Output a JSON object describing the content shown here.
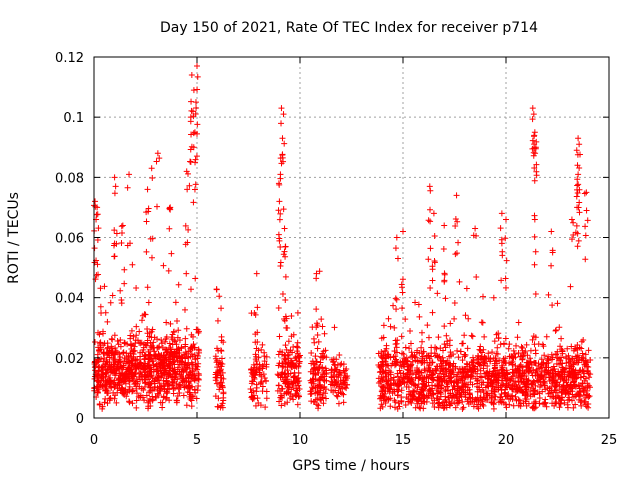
{
  "chart_data": {
    "type": "scatter",
    "title": "Day 150 of 2021, Rate Of TEC Index for receiver p714",
    "xlabel": "GPS time / hours",
    "ylabel": "ROTI / TECUs",
    "xlim": [
      0,
      25
    ],
    "ylim": [
      0,
      0.12
    ],
    "xticks": [
      "0",
      "5",
      "10",
      "15",
      "20",
      "25"
    ],
    "xtick_values": [
      0,
      5,
      10,
      15,
      20,
      25
    ],
    "yticks": [
      "0",
      "0.02",
      "0.04",
      "0.06",
      "0.08",
      "0.1",
      "0.12"
    ],
    "ytick_values": [
      0,
      0.02,
      0.04,
      0.06,
      0.07999,
      0.1,
      0.12
    ],
    "grid": true,
    "marker": "+",
    "marker_color": "#ff0000",
    "segments": [
      {
        "x_start": 0.0,
        "x_end": 5.1,
        "base": 0.016,
        "spread": 0.02,
        "count": 900
      },
      {
        "x_start": 5.9,
        "x_end": 6.3,
        "base": 0.014,
        "spread": 0.02,
        "count": 60
      },
      {
        "x_start": 7.6,
        "x_end": 8.4,
        "base": 0.014,
        "spread": 0.02,
        "count": 80
      },
      {
        "x_start": 8.9,
        "x_end": 10.0,
        "base": 0.015,
        "spread": 0.02,
        "count": 160
      },
      {
        "x_start": 10.5,
        "x_end": 11.3,
        "base": 0.013,
        "spread": 0.02,
        "count": 110
      },
      {
        "x_start": 11.5,
        "x_end": 12.3,
        "base": 0.013,
        "spread": 0.012,
        "count": 80
      },
      {
        "x_start": 13.8,
        "x_end": 24.1,
        "base": 0.013,
        "spread": 0.02,
        "count": 1500
      }
    ],
    "peaks": [
      {
        "x": 0.05,
        "y": 0.072
      },
      {
        "x": 0.1,
        "y": 0.066
      },
      {
        "x": 0.15,
        "y": 0.07
      },
      {
        "x": 1.0,
        "y": 0.08
      },
      {
        "x": 1.05,
        "y": 0.077
      },
      {
        "x": 1.7,
        "y": 0.081
      },
      {
        "x": 1.4,
        "y": 0.064
      },
      {
        "x": 2.8,
        "y": 0.083
      },
      {
        "x": 3.1,
        "y": 0.088
      },
      {
        "x": 2.6,
        "y": 0.076
      },
      {
        "x": 3.7,
        "y": 0.07
      },
      {
        "x": 4.5,
        "y": 0.082
      },
      {
        "x": 4.75,
        "y": 0.114
      },
      {
        "x": 4.85,
        "y": 0.109
      },
      {
        "x": 4.95,
        "y": 0.105
      },
      {
        "x": 5.0,
        "y": 0.117
      },
      {
        "x": 4.7,
        "y": 0.1
      },
      {
        "x": 4.9,
        "y": 0.095
      },
      {
        "x": 9.1,
        "y": 0.103
      },
      {
        "x": 9.2,
        "y": 0.101
      },
      {
        "x": 9.15,
        "y": 0.093
      },
      {
        "x": 9.05,
        "y": 0.081
      },
      {
        "x": 9.25,
        "y": 0.063
      },
      {
        "x": 9.3,
        "y": 0.057
      },
      {
        "x": 9.0,
        "y": 0.072
      },
      {
        "x": 10.8,
        "y": 0.048
      },
      {
        "x": 7.9,
        "y": 0.048
      },
      {
        "x": 16.3,
        "y": 0.077
      },
      {
        "x": 17.6,
        "y": 0.074
      },
      {
        "x": 15.0,
        "y": 0.062
      },
      {
        "x": 21.3,
        "y": 0.103
      },
      {
        "x": 21.35,
        "y": 0.101
      },
      {
        "x": 21.4,
        "y": 0.095
      },
      {
        "x": 21.45,
        "y": 0.09
      },
      {
        "x": 23.5,
        "y": 0.093
      },
      {
        "x": 23.55,
        "y": 0.091
      },
      {
        "x": 23.5,
        "y": 0.081
      },
      {
        "x": 23.45,
        "y": 0.07
      },
      {
        "x": 23.9,
        "y": 0.075
      },
      {
        "x": 20.0,
        "y": 0.066
      },
      {
        "x": 19.8,
        "y": 0.068
      },
      {
        "x": 21.4,
        "y": 0.066
      },
      {
        "x": 22.2,
        "y": 0.062
      },
      {
        "x": 23.2,
        "y": 0.066
      },
      {
        "x": 16.5,
        "y": 0.068
      },
      {
        "x": 14.7,
        "y": 0.06
      },
      {
        "x": 18.5,
        "y": 0.063
      },
      {
        "x": 17.0,
        "y": 0.064
      }
    ]
  }
}
